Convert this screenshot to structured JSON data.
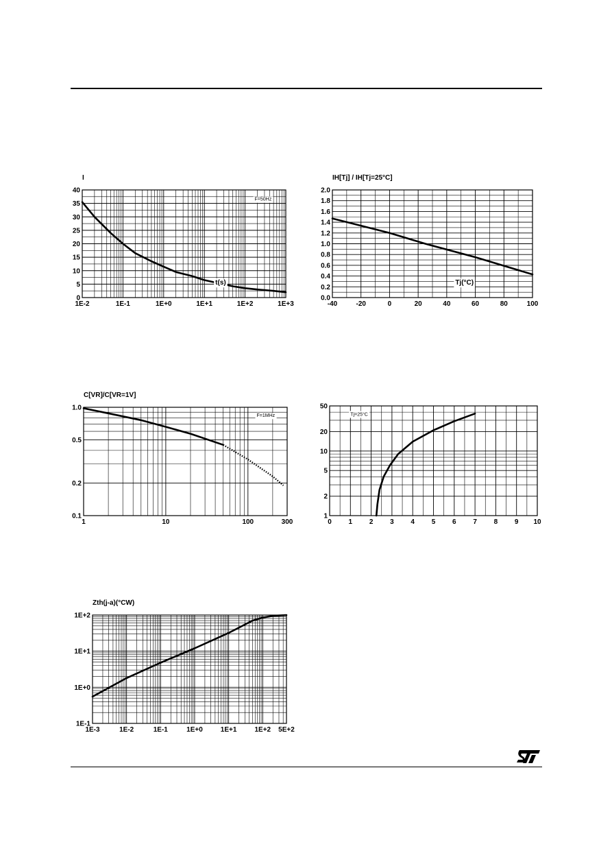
{
  "logo_text": "ST",
  "charts": [
    {
      "id": "c1",
      "type": "line",
      "title": "",
      "ylabel": "I",
      "xlabel": "t(s)",
      "annotation": "F=50Hz",
      "xscale": "log",
      "yscale": "linear",
      "xlim": [
        0.01,
        1000
      ],
      "ylim": [
        0,
        40
      ],
      "xticks": [
        0.01,
        0.1,
        1,
        10,
        100,
        1000
      ],
      "xtick_labels": [
        "1E-2",
        "1E-1",
        "1E+0",
        "1E+1",
        "1E+2",
        "1E+3"
      ],
      "yticks": [
        0,
        5,
        10,
        15,
        20,
        25,
        30,
        35,
        40
      ],
      "ytick_labels": [
        "0",
        "5",
        "10",
        "15",
        "20",
        "25",
        "30",
        "35",
        "40"
      ],
      "grid": true,
      "legend": "none",
      "series": [
        {
          "style": "solid",
          "points": [
            [
              0.01,
              35.5
            ],
            [
              0.02,
              30
            ],
            [
              0.05,
              24
            ],
            [
              0.1,
              20
            ],
            [
              0.2,
              16.5
            ],
            [
              0.5,
              13.5
            ],
            [
              1,
              11.5
            ],
            [
              2,
              9.5
            ],
            [
              5,
              8
            ],
            [
              10,
              6.5
            ],
            [
              20,
              5.5
            ],
            [
              50,
              4.2
            ],
            [
              100,
              3.5
            ],
            [
              200,
              3
            ],
            [
              500,
              2.5
            ],
            [
              1000,
              2
            ]
          ]
        }
      ]
    },
    {
      "id": "c2",
      "type": "line",
      "title": "",
      "ylabel": "IH[Tj] / IH[Tj=25°C]",
      "xlabel": "Tj(°C)",
      "annotation": "",
      "xscale": "linear",
      "yscale": "linear",
      "xlim": [
        -40,
        100
      ],
      "ylim": [
        0,
        2
      ],
      "xticks": [
        -40,
        -20,
        0,
        20,
        40,
        60,
        80,
        100
      ],
      "xtick_labels": [
        "-40",
        "-20",
        "0",
        "20",
        "40",
        "60",
        "80",
        "100"
      ],
      "yticks": [
        0,
        0.2,
        0.4,
        0.6,
        0.8,
        1.0,
        1.2,
        1.4,
        1.6,
        1.8,
        2.0
      ],
      "ytick_labels": [
        "0.0",
        "0.2",
        "0.4",
        "0.6",
        "0.8",
        "1.0",
        "1.2",
        "1.4",
        "1.6",
        "1.8",
        "2.0"
      ],
      "grid": true,
      "legend": "none",
      "series": [
        {
          "style": "solid",
          "points": [
            [
              -40,
              1.47
            ],
            [
              0,
              1.2
            ],
            [
              25,
              1.0
            ],
            [
              60,
              0.75
            ],
            [
              100,
              0.43
            ]
          ]
        }
      ]
    },
    {
      "id": "c3",
      "type": "line",
      "title": "",
      "ylabel": "C[VR]/C[VR=1V]",
      "xlabel": "",
      "annotation": "F=1MHz",
      "xscale": "log",
      "yscale": "log",
      "xlim": [
        1,
        300
      ],
      "ylim": [
        0.1,
        1.0
      ],
      "xticks": [
        1,
        10,
        100,
        300
      ],
      "xtick_labels": [
        "1",
        "10",
        "100",
        "300"
      ],
      "yticks": [
        0.1,
        0.2,
        0.5,
        1.0
      ],
      "ytick_labels": [
        "0.1",
        "0.2",
        "0.5",
        "1.0"
      ],
      "grid": true,
      "legend": "none",
      "series": [
        {
          "style": "solid",
          "points": [
            [
              1,
              0.98
            ],
            [
              2,
              0.88
            ],
            [
              5,
              0.76
            ],
            [
              10,
              0.66
            ],
            [
              20,
              0.57
            ],
            [
              50,
              0.45
            ]
          ]
        },
        {
          "style": "dotted",
          "points": [
            [
              50,
              0.45
            ],
            [
              100,
              0.33
            ],
            [
              200,
              0.23
            ],
            [
              270,
              0.19
            ]
          ]
        }
      ]
    },
    {
      "id": "c4",
      "type": "line",
      "title": "",
      "ylabel": "",
      "xlabel": "",
      "annotation": "Tj=25°C",
      "xscale": "linear",
      "yscale": "log",
      "xlim": [
        0,
        10
      ],
      "ylim": [
        1,
        50
      ],
      "xticks": [
        0,
        1,
        2,
        3,
        4,
        5,
        6,
        7,
        8,
        9,
        10
      ],
      "xtick_labels": [
        "0",
        "1",
        "2",
        "3",
        "4",
        "5",
        "6",
        "7",
        "8",
        "9",
        "10"
      ],
      "yticks": [
        1,
        2,
        5,
        10,
        20,
        50
      ],
      "ytick_labels": [
        "1",
        "2",
        "5",
        "10",
        "20",
        "50"
      ],
      "grid": true,
      "legend": "none",
      "series": [
        {
          "style": "solid",
          "points": [
            [
              2.25,
              1
            ],
            [
              2.3,
              1.5
            ],
            [
              2.4,
              2.5
            ],
            [
              2.6,
              4
            ],
            [
              2.9,
              6
            ],
            [
              3.3,
              9
            ],
            [
              4,
              14
            ],
            [
              5,
              21
            ],
            [
              6,
              29
            ],
            [
              7,
              38
            ]
          ]
        }
      ]
    },
    {
      "id": "c5",
      "type": "line",
      "title": "",
      "ylabel": "Zth(j-a)(°CW)",
      "xlabel": "",
      "annotation": "",
      "xscale": "log",
      "yscale": "log",
      "xlim": [
        0.001,
        500
      ],
      "ylim": [
        0.1,
        100
      ],
      "xticks": [
        0.001,
        0.01,
        0.1,
        1,
        10,
        100,
        500
      ],
      "xtick_labels": [
        "1E-3",
        "1E-2",
        "1E-1",
        "1E+0",
        "1E+1",
        "1E+2",
        "5E+2"
      ],
      "yticks": [
        0.1,
        1,
        10,
        100
      ],
      "ytick_labels": [
        "1E-1",
        "1E+0",
        "1E+1",
        "1E+2"
      ],
      "grid": true,
      "legend": "none",
      "series": [
        {
          "style": "solid",
          "points": [
            [
              0.001,
              0.55
            ],
            [
              0.01,
              1.8
            ],
            [
              0.1,
              4.8
            ],
            [
              1,
              12
            ],
            [
              10,
              32
            ],
            [
              50,
              70
            ],
            [
              100,
              85
            ],
            [
              200,
              95
            ],
            [
              500,
              100
            ]
          ]
        }
      ]
    }
  ]
}
